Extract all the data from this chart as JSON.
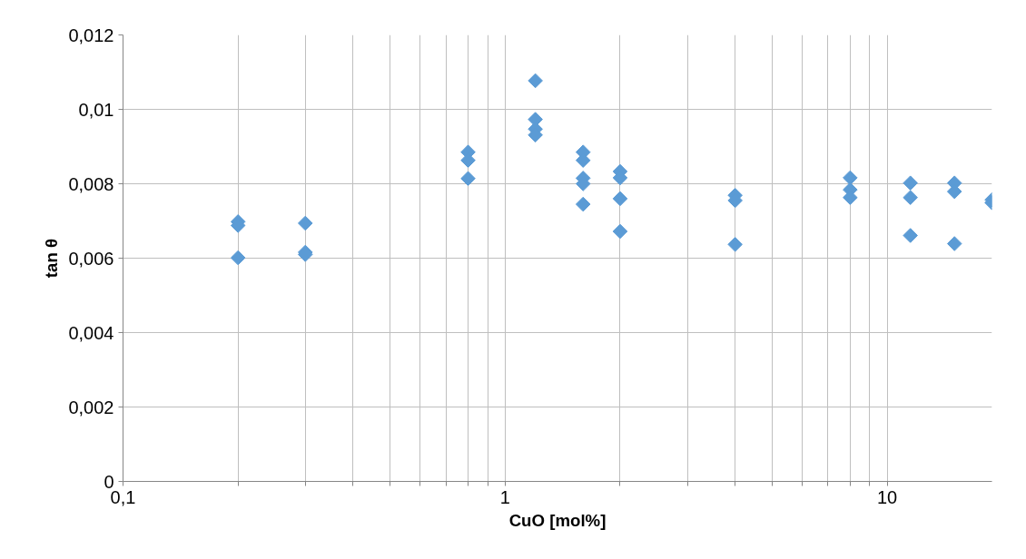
{
  "chart_data": {
    "type": "scatter",
    "xlabel": "CuO [mol%]",
    "ylabel": "tan θ",
    "log": "x",
    "marker": "diamond",
    "grid": true,
    "xlim": [
      0.1,
      18.8
    ],
    "ylim": [
      0,
      0.012
    ],
    "xticks": [
      {
        "value": 0.1,
        "label": "0,1"
      },
      {
        "value": 0.2,
        "label": null
      },
      {
        "value": 0.3,
        "label": null
      },
      {
        "value": 0.4,
        "label": null
      },
      {
        "value": 0.5,
        "label": null
      },
      {
        "value": 0.6,
        "label": null
      },
      {
        "value": 0.7,
        "label": null
      },
      {
        "value": 0.8,
        "label": null
      },
      {
        "value": 0.9,
        "label": null
      },
      1,
      {
        "value": 2,
        "label": null
      },
      {
        "value": 3,
        "label": null
      },
      {
        "value": 4,
        "label": null
      },
      {
        "value": 5,
        "label": null
      },
      {
        "value": 6,
        "label": null
      },
      {
        "value": 7,
        "label": null
      },
      {
        "value": 8,
        "label": null
      },
      {
        "value": 9,
        "label": null
      },
      10
    ],
    "yticks": [
      0,
      {
        "value": 0.002,
        "label": "0,002"
      },
      {
        "value": 0.004,
        "label": "0,004"
      },
      {
        "value": 0.006,
        "label": "0,006"
      },
      {
        "value": 0.008,
        "label": "0,008"
      },
      {
        "value": 0.01,
        "label": "0,01"
      },
      {
        "value": 0.012,
        "label": "0,012"
      }
    ],
    "series": [
      {
        "color": "#5b9bd5",
        "x": [
          0.2,
          0.2,
          0.2,
          0.3,
          0.3,
          0.3,
          0.8,
          0.8,
          0.8,
          1.2,
          1.2,
          1.2,
          1.2,
          1.6,
          1.6,
          1.6,
          1.6,
          1.6,
          2,
          2,
          2,
          2,
          4,
          4,
          4,
          8,
          8,
          8,
          11.5,
          11.5,
          11.5,
          15,
          15,
          15,
          18.8,
          18.8
        ],
        "values": [
          0.00698,
          0.00688,
          0.00601,
          0.00694,
          0.00616,
          0.0061,
          0.00885,
          0.00863,
          0.00814,
          0.01077,
          0.00973,
          0.00947,
          0.00931,
          0.00885,
          0.00863,
          0.00815,
          0.008,
          0.00745,
          0.00833,
          0.00816,
          0.0076,
          0.00672,
          0.00769,
          0.00755,
          0.00637,
          0.00816,
          0.00784,
          0.00763,
          0.00802,
          0.00763,
          0.00661,
          0.00802,
          0.00779,
          0.00639,
          0.00757,
          0.00749
        ]
      }
    ]
  }
}
